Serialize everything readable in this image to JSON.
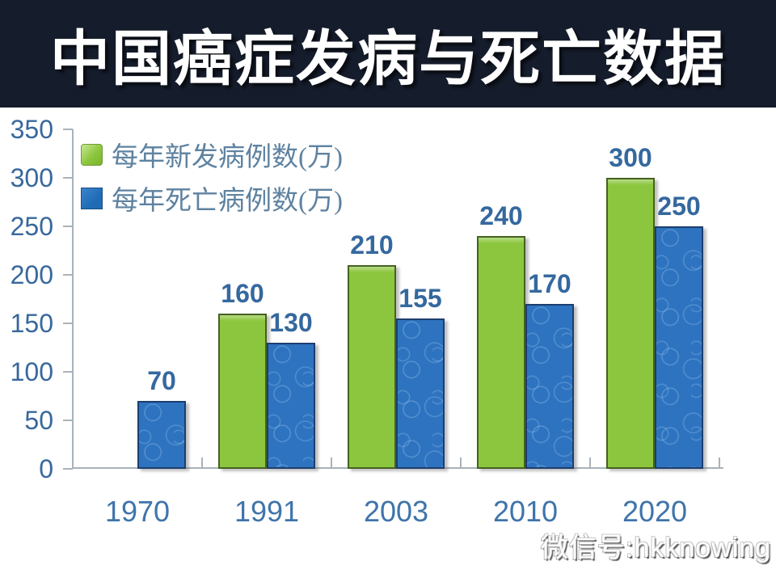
{
  "header": {
    "title": "中国癌症发病与死亡数据"
  },
  "chart_data": {
    "type": "bar",
    "title": "中国癌症发病与死亡数据",
    "categories": [
      "1970",
      "1991",
      "2003",
      "2010",
      "2020"
    ],
    "series": [
      {
        "name": "每年新发病例数(万)",
        "color": "#8cc63e",
        "values": [
          null,
          160,
          210,
          240,
          300
        ]
      },
      {
        "name": "每年死亡病例数(万)",
        "color": "#2e73bf",
        "values": [
          70,
          130,
          155,
          170,
          250
        ]
      }
    ],
    "xlabel": "",
    "ylabel": "",
    "ylim": [
      0,
      350
    ],
    "ytick_step": 50,
    "ytick_labels": [
      "350",
      "300",
      "250",
      "200",
      "150",
      "100",
      "50",
      "0"
    ],
    "legend_position": "top-left",
    "grid": false,
    "bar_value_labels_shown": true
  },
  "watermark": {
    "text": "微信号:hkknowing"
  },
  "colors": {
    "header_bg": "#151c2b",
    "title_text": "#ffffff",
    "axis_line": "#a9b2ba",
    "tick_label": "#38689c",
    "data_label": "#35689f",
    "legend_text": "#5e82a0",
    "green_bar": "#8cc63e",
    "blue_bar": "#2e73bf"
  }
}
